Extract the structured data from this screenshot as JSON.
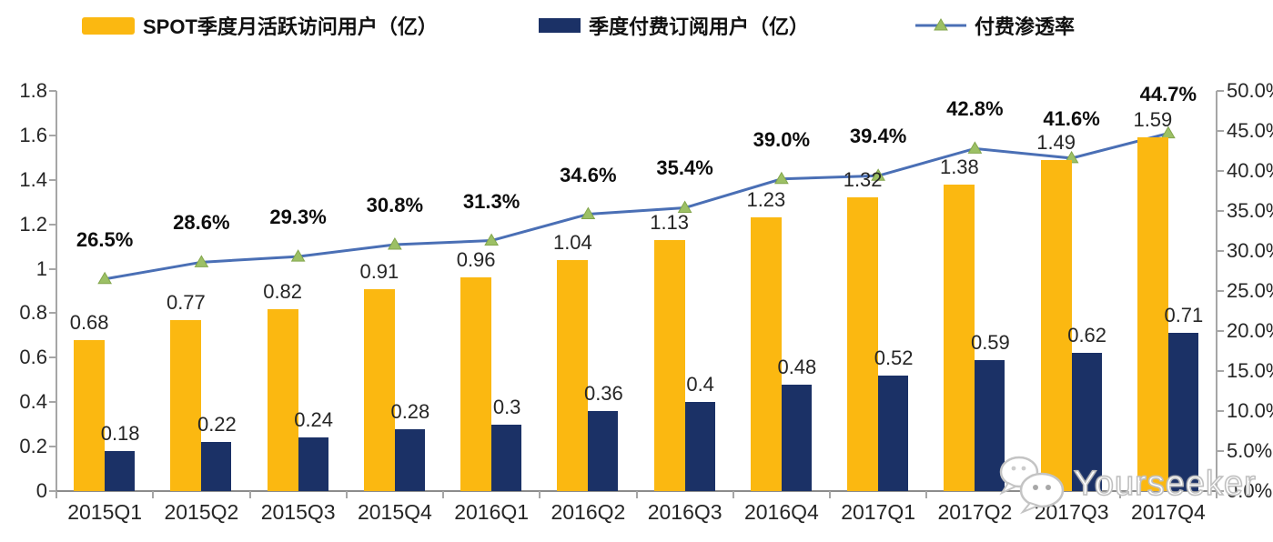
{
  "chart_data": {
    "type": "combo-bar-line",
    "title": "",
    "categories": [
      "2015Q1",
      "2015Q2",
      "2015Q3",
      "2015Q4",
      "2016Q1",
      "2016Q2",
      "2016Q3",
      "2016Q4",
      "2017Q1",
      "2017Q2",
      "2017Q3",
      "2017Q4"
    ],
    "series": [
      {
        "name": "SPOT季度月活跃访问用户（亿）",
        "type": "bar",
        "axis": "left",
        "color": "#FBB811",
        "values": [
          0.68,
          0.77,
          0.82,
          0.91,
          0.96,
          1.04,
          1.13,
          1.23,
          1.32,
          1.38,
          1.49,
          1.59
        ],
        "labels": [
          "0.68",
          "0.77",
          "0.82",
          "0.91",
          "0.96",
          "1.04",
          "1.13",
          "1.23",
          "1.32",
          "1.38",
          "1.49",
          "1.59"
        ]
      },
      {
        "name": "季度付费订阅用户（亿）",
        "type": "bar",
        "axis": "left",
        "color": "#1B3166",
        "values": [
          0.18,
          0.22,
          0.24,
          0.28,
          0.3,
          0.36,
          0.4,
          0.48,
          0.52,
          0.59,
          0.62,
          0.71
        ],
        "labels": [
          "0.18",
          "0.22",
          "0.24",
          "0.28",
          "0.3",
          "0.36",
          "0.4",
          "0.48",
          "0.52",
          "0.59",
          "0.62",
          "0.71"
        ]
      },
      {
        "name": "付费渗透率",
        "type": "line",
        "axis": "right",
        "color": "#4A6FB5",
        "marker_color": "#9CC065",
        "marker_edge": "#83A64C",
        "values": [
          26.5,
          28.6,
          29.3,
          30.8,
          31.3,
          34.6,
          35.4,
          39.0,
          39.4,
          42.8,
          41.6,
          44.7
        ],
        "labels": [
          "26.5%",
          "28.6%",
          "29.3%",
          "30.8%",
          "31.3%",
          "34.6%",
          "35.4%",
          "39.0%",
          "39.4%",
          "42.8%",
          "41.6%",
          "44.7%"
        ]
      }
    ],
    "left_axis": {
      "min": 0,
      "max": 1.8,
      "ticks": [
        "1.8",
        "1.6",
        "1.4",
        "1.2",
        "1",
        "0.8",
        "0.6",
        "0.4",
        "0.2",
        "0"
      ]
    },
    "right_axis": {
      "min": 0,
      "max": 50,
      "ticks": [
        "50.0%",
        "45.0%",
        "40.0%",
        "35.0%",
        "30.0%",
        "25.0%",
        "20.0%",
        "15.0%",
        "10.0%",
        "5.0%",
        "0.0%"
      ]
    },
    "grid": false,
    "legend_position": "top"
  },
  "watermark": {
    "text": "Yourseeker"
  },
  "colors": {
    "axis_line": "#a6a6a6",
    "bottom_axis_line": "#8c8c8c",
    "text": "#262626"
  }
}
